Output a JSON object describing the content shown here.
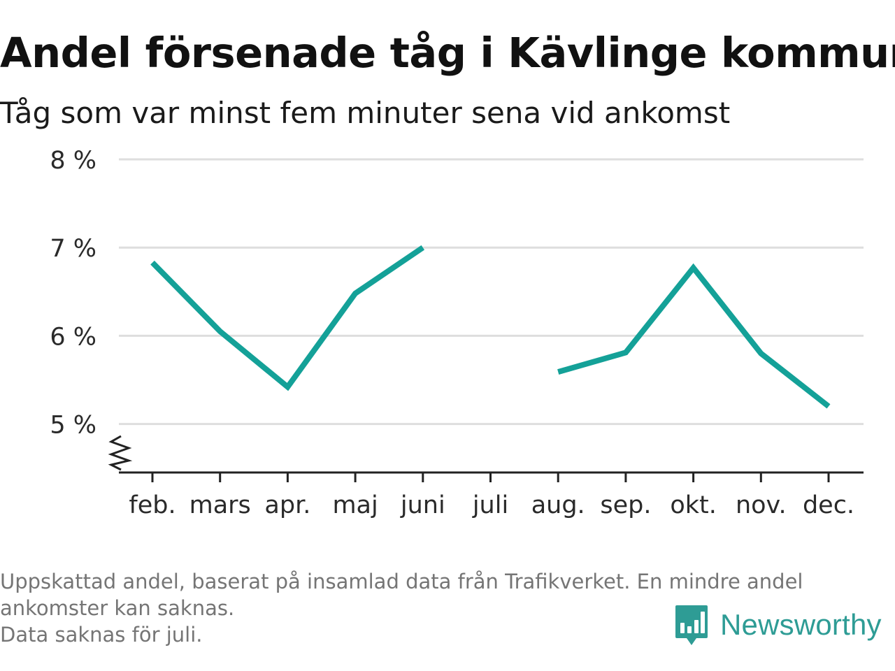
{
  "header": {
    "title": "Andel försenade tåg i Kävlinge kommun",
    "subtitle": "Tåg som var minst fem minuter sena vid ankomst"
  },
  "chart_data": {
    "type": "line",
    "title": "Andel försenade tåg i Kävlinge kommun",
    "subtitle": "Tåg som var minst fem minuter sena vid ankomst",
    "xlabel": "",
    "ylabel": "",
    "categories": [
      "feb.",
      "mars",
      "apr.",
      "maj",
      "juni",
      "juli",
      "aug.",
      "sep.",
      "okt.",
      "nov.",
      "dec."
    ],
    "series": [
      {
        "values": [
          6.83,
          6.05,
          5.42,
          6.48,
          7.0,
          null,
          5.59,
          5.81,
          6.77,
          5.8,
          5.2
        ]
      }
    ],
    "yticks": [
      5,
      6,
      7,
      8
    ],
    "ytick_labels": [
      "5 %",
      "6 %",
      "7 %",
      "8 %"
    ],
    "ylim": [
      4.45,
      8
    ],
    "y_axis_break": true,
    "grid": true,
    "legend": "none",
    "line_color": "#14a198",
    "grid_color": "#dedede",
    "axis_color": "#222222"
  },
  "footer": {
    "note_lines": [
      "Uppskattad andel, baserat på insamlad data från Trafikverket. En mindre andel",
      "ankomster kan saknas.",
      "Data saknas för juli."
    ],
    "brand": "Newsworthy",
    "brand_color": "#2e9c95",
    "brand_icon": "bar-chart-speech-bubble-icon"
  }
}
